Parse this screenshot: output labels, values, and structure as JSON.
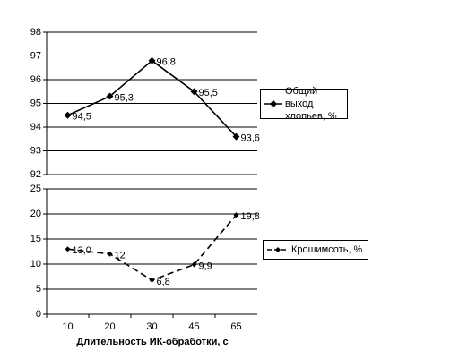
{
  "chart_data": [
    {
      "type": "line",
      "series": [
        {
          "name": "Общий выход хлопьев, %",
          "color": "#000000",
          "dash": false,
          "values": [
            94.5,
            95.3,
            96.8,
            95.5,
            93.6
          ],
          "value_labels": [
            "94,5",
            "95,3",
            "96,8",
            "95,5",
            "93,6"
          ]
        }
      ],
      "ylim": [
        92,
        98
      ],
      "yticks": [
        92,
        93,
        94,
        95,
        96,
        97,
        98
      ],
      "grid": true
    },
    {
      "type": "line",
      "categories": [
        "10",
        "20",
        "30",
        "45",
        "65"
      ],
      "x_label": "Длительность ИК-обработки, с",
      "series": [
        {
          "name": "Крошимсоть, %",
          "color": "#000000",
          "dash": true,
          "values": [
            13.0,
            12,
            6.8,
            9.9,
            19.8
          ],
          "value_labels": [
            "13,0",
            "12",
            "6,8",
            "9,9",
            "19,8"
          ]
        }
      ],
      "ylim": [
        0,
        25
      ],
      "yticks": [
        0,
        5,
        10,
        15,
        20,
        25
      ],
      "grid": true
    }
  ]
}
